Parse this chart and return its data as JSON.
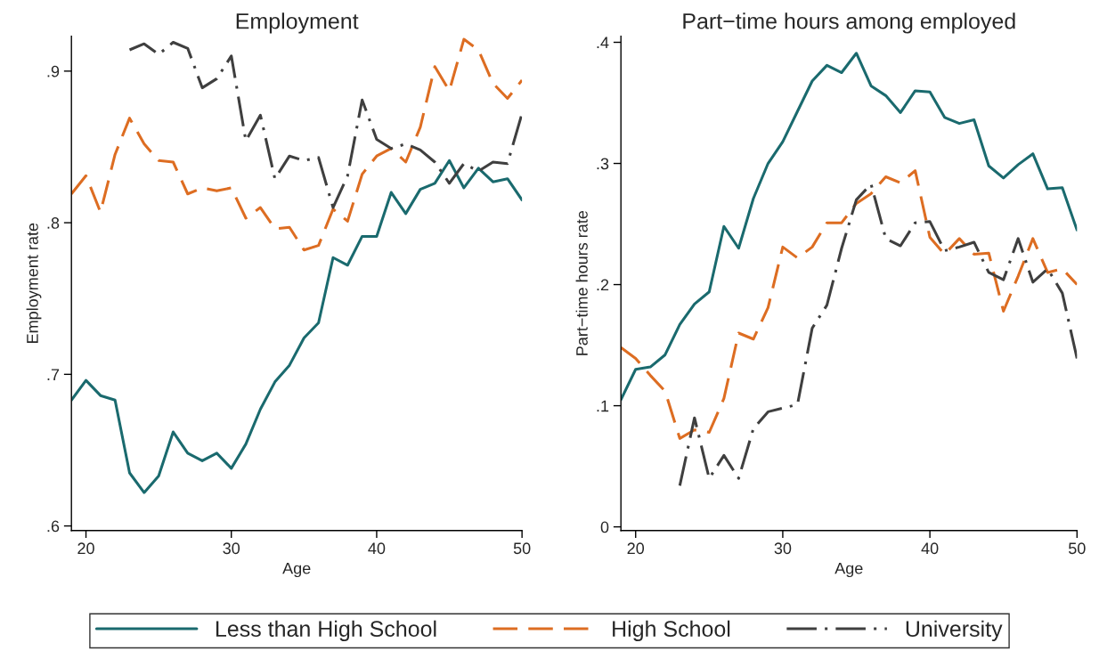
{
  "chart_data": [
    {
      "type": "line",
      "title": "Employment",
      "xlabel": "Age",
      "ylabel": "Employment rate",
      "x": [
        19,
        20,
        21,
        22,
        23,
        24,
        25,
        26,
        27,
        28,
        29,
        30,
        31,
        32,
        33,
        34,
        35,
        36,
        37,
        38,
        39,
        40,
        41,
        42,
        43,
        44,
        45,
        46,
        47,
        48,
        49,
        50
      ],
      "series": [
        {
          "name": "Less than High School",
          "color": "#1a6a6e",
          "line_style": "solid",
          "values": [
            0.683,
            0.696,
            0.686,
            0.683,
            0.635,
            0.622,
            0.633,
            0.662,
            0.648,
            0.643,
            0.648,
            0.638,
            0.654,
            0.677,
            0.695,
            0.706,
            0.724,
            0.734,
            0.777,
            0.772,
            0.791,
            0.791,
            0.82,
            0.806,
            0.822,
            0.826,
            0.841,
            0.823,
            0.836,
            0.827,
            0.829,
            0.815
          ]
        },
        {
          "name": "High School",
          "color": "#dd6d22",
          "line_style": "dashed",
          "values": [
            0.819,
            0.831,
            0.807,
            0.845,
            0.869,
            0.852,
            0.841,
            0.84,
            0.819,
            0.823,
            0.821,
            0.823,
            0.803,
            0.81,
            0.796,
            0.797,
            0.782,
            0.785,
            0.809,
            0.801,
            0.832,
            0.844,
            0.849,
            0.84,
            0.863,
            0.903,
            0.887,
            0.921,
            0.914,
            0.892,
            0.882,
            0.894
          ]
        },
        {
          "name": "University",
          "color": "#3f3f3f",
          "line_style": "dashdot",
          "values": [
            null,
            null,
            null,
            null,
            0.914,
            0.918,
            0.911,
            0.919,
            0.915,
            0.889,
            0.895,
            0.91,
            0.854,
            0.871,
            0.829,
            0.844,
            0.841,
            0.843,
            0.81,
            0.831,
            0.881,
            0.855,
            0.849,
            0.852,
            0.848,
            0.84,
            0.826,
            0.839,
            0.834,
            0.84,
            0.839,
            0.872
          ]
        }
      ],
      "xlim": [
        19,
        50
      ],
      "xticks": [
        20,
        30,
        40,
        50
      ],
      "ylim": [
        0.597,
        0.923
      ],
      "yticks": [
        {
          "value": 0.6,
          "label": ".6"
        },
        {
          "value": 0.7,
          "label": ".7"
        },
        {
          "value": 0.8,
          "label": ".8"
        },
        {
          "value": 0.9,
          "label": ".9"
        }
      ],
      "grid": false,
      "legend": "bottom"
    },
    {
      "type": "line",
      "title": "Part−time hours among employed",
      "xlabel": "Age",
      "ylabel": "Part−time hours rate",
      "x": [
        19,
        20,
        21,
        22,
        23,
        24,
        25,
        26,
        27,
        28,
        29,
        30,
        31,
        32,
        33,
        34,
        35,
        36,
        37,
        38,
        39,
        40,
        41,
        42,
        43,
        44,
        45,
        46,
        47,
        48,
        49,
        50
      ],
      "series": [
        {
          "color": "#1a6a6e",
          "line_style": "solid",
          "values": [
            0.105,
            0.13,
            0.132,
            0.142,
            0.167,
            0.184,
            0.194,
            0.248,
            0.23,
            0.271,
            0.3,
            0.318,
            0.343,
            0.368,
            0.381,
            0.375,
            0.391,
            0.364,
            0.356,
            0.342,
            0.36,
            0.359,
            0.338,
            0.333,
            0.336,
            0.298,
            0.288,
            0.299,
            0.308,
            0.279,
            0.28,
            0.245
          ]
        },
        {
          "color": "#dd6d22",
          "line_style": "dashed",
          "values": [
            0.148,
            0.139,
            0.125,
            0.112,
            0.073,
            0.08,
            0.078,
            0.106,
            0.16,
            0.155,
            0.181,
            0.231,
            0.222,
            0.231,
            0.251,
            0.251,
            0.267,
            0.275,
            0.289,
            0.284,
            0.294,
            0.239,
            0.225,
            0.238,
            0.225,
            0.226,
            0.178,
            0.207,
            0.238,
            0.21,
            0.213,
            0.2
          ]
        },
        {
          "color": "#3f3f3f",
          "line_style": "dashdot",
          "values": [
            null,
            null,
            null,
            null,
            0.034,
            0.09,
            0.04,
            0.059,
            0.04,
            0.081,
            0.095,
            0.098,
            0.101,
            0.164,
            0.183,
            0.23,
            0.27,
            0.283,
            0.238,
            0.232,
            0.251,
            0.252,
            0.228,
            0.231,
            0.235,
            0.21,
            0.204,
            0.238,
            0.202,
            0.213,
            0.193,
            0.139
          ]
        }
      ],
      "xlim": [
        19,
        50
      ],
      "xticks": [
        20,
        30,
        40,
        50
      ],
      "ylim": [
        -0.003,
        0.405
      ],
      "yticks": [
        0,
        {
          "value": 0.1,
          "label": ".1"
        },
        {
          "value": 0.2,
          "label": ".2"
        },
        {
          "value": 0.3,
          "label": ".3"
        },
        {
          "value": 0.4,
          "label": ".4"
        }
      ],
      "grid": false,
      "legend": false
    }
  ]
}
